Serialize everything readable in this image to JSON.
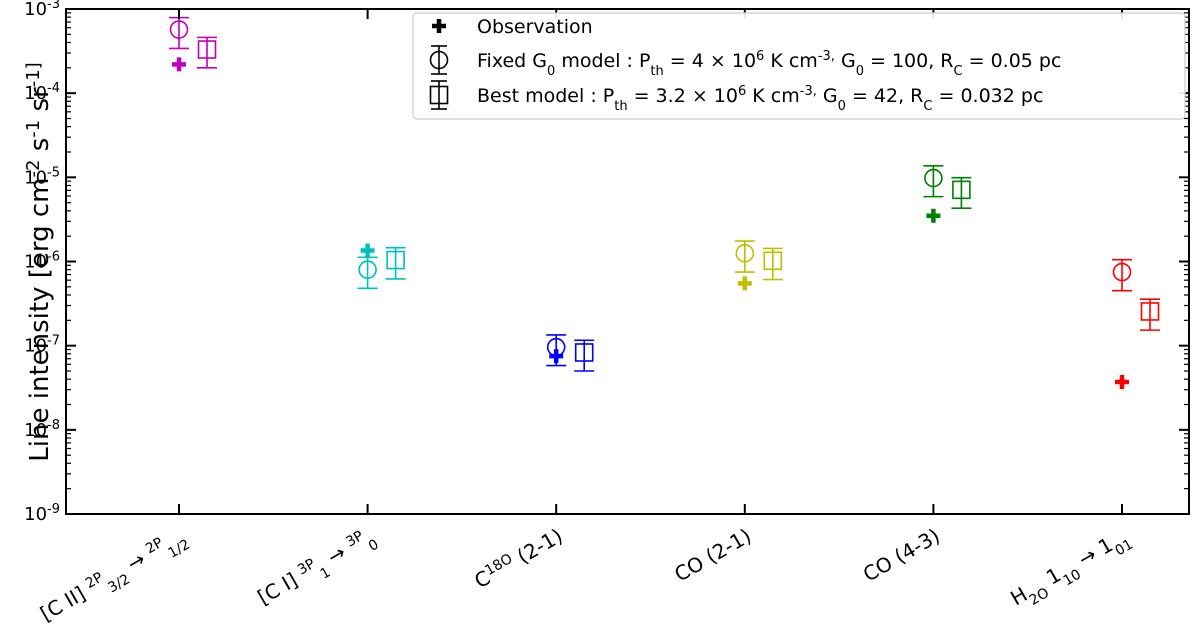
{
  "chart_data": {
    "type": "scatter",
    "title": "",
    "xlabel": "",
    "ylabel": "Line intensity [erg cm^-2 s^-1 sr^-1]",
    "yscale": "log",
    "ylim": [
      1e-09,
      0.001
    ],
    "grid": false,
    "legend_position": "top-right",
    "y_tick_labels": [
      "10^-9",
      "10^-8",
      "10^-7",
      "10^-6",
      "10^-5",
      "10^-4",
      "10^-3"
    ],
    "categories": [
      "[C II] 2P3/2 → 2P1/2",
      "[C I] 3P1 → 3P0",
      "C18O (2-1)",
      "CO (2-1)",
      "CO (4-3)",
      "H2O 110 → 101"
    ],
    "category_colors": [
      "#bf00bf",
      "#00bfbf",
      "#0000ff",
      "#bfbf00",
      "#008000",
      "#ff0000"
    ],
    "series": [
      {
        "name": "Observation",
        "marker": "plus",
        "values": [
          0.00022,
          1.35e-06,
          7.5e-08,
          5.5e-07,
          3.5e-06,
          3.7e-08
        ]
      },
      {
        "name": "Fixed G0 model : Pth = 4 × 10^6 K cm^-3, G0 = 100, RC = 0.05 pc",
        "marker": "circle",
        "values": [
          0.00057,
          8e-07,
          9.6e-08,
          1.25e-06,
          9.8e-06,
          7.5e-07
        ],
        "err_low": [
          0.00034,
          4.8e-07,
          5.8e-08,
          7.5e-07,
          5.9e-06,
          4.5e-07
        ],
        "err_high": [
          0.00079,
          1.12e-06,
          1.34e-07,
          1.75e-06,
          1.37e-05,
          1.05e-06
        ]
      },
      {
        "name": "Best model : Pth = 3.2 × 10^6 K cm^-3, G0 = 42, RC = 0.032 pc",
        "marker": "square",
        "values": [
          0.00033,
          1.04e-06,
          8.3e-08,
          1.02e-06,
          7.1e-06,
          2.55e-07
        ],
        "err_low": [
          0.0002,
          6.2e-07,
          5e-08,
          6.1e-07,
          4.3e-06,
          1.53e-07
        ],
        "err_high": [
          0.00046,
          1.46e-06,
          1.16e-07,
          1.43e-06,
          9.9e-06,
          3.57e-07
        ]
      }
    ]
  }
}
